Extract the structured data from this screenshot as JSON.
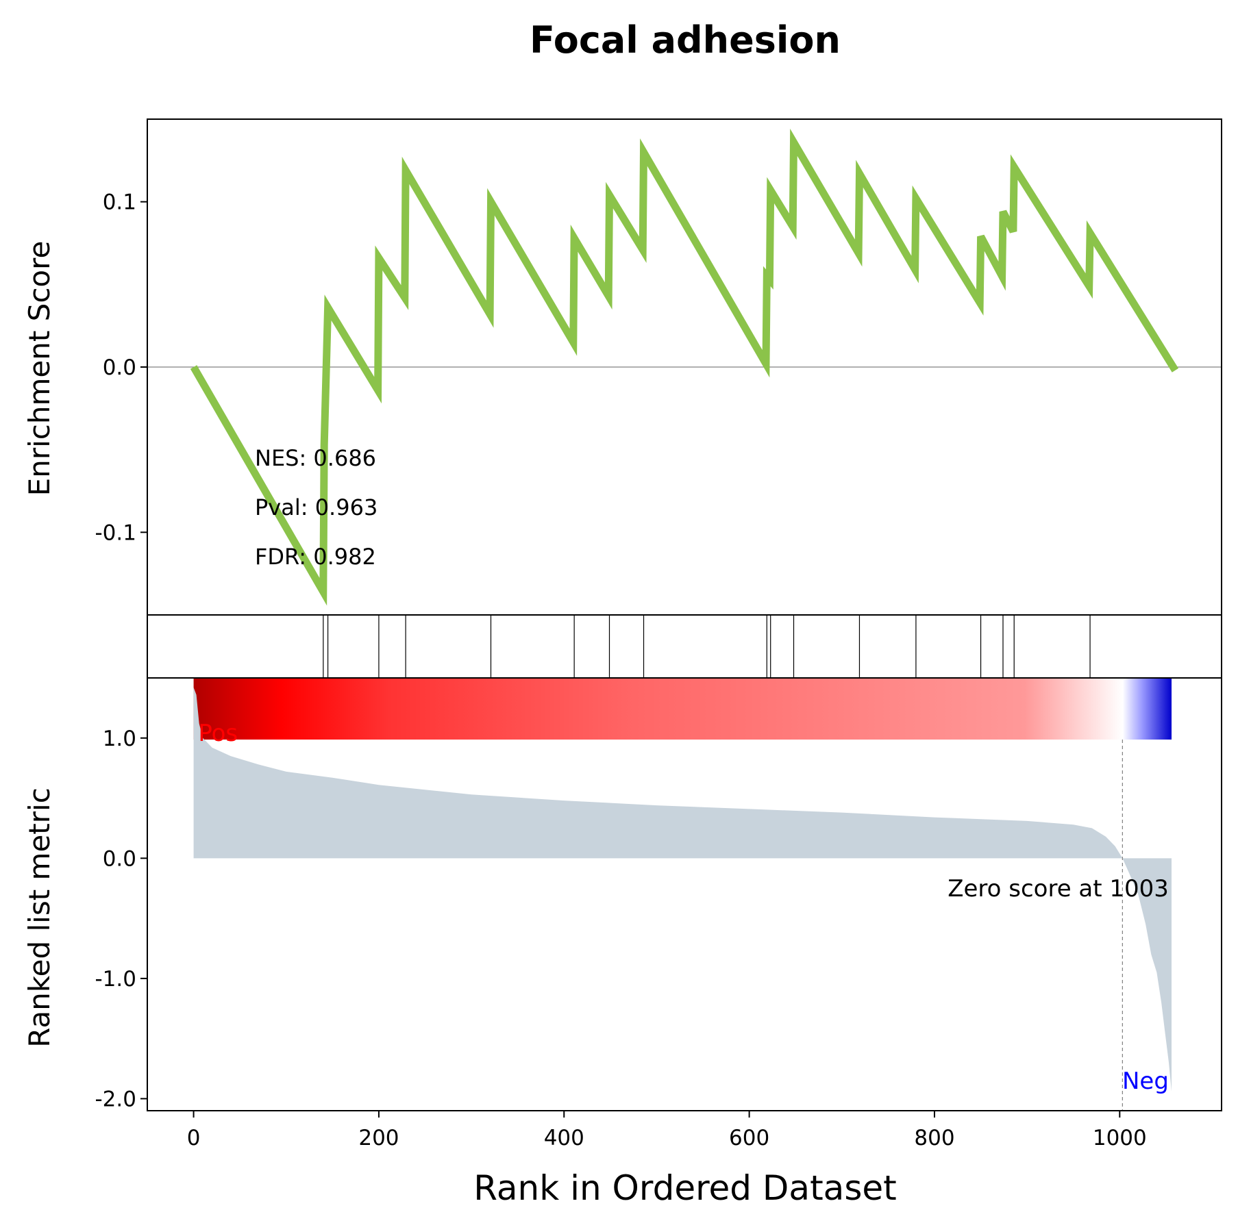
{
  "title": "Focal adhesion",
  "colors": {
    "es_line": "#8bc34a",
    "hit_line": "#000000",
    "metric_fill": "#c8d3dc",
    "pos_label": "#ff0000",
    "neg_label": "#0000ff",
    "zero_line": "#808080",
    "heat_stops": [
      "#b00000",
      "#ff0000",
      "#ff3333",
      "#ff6666",
      "#ff9999",
      "#ffffff",
      "#9999ff",
      "#0000cc"
    ]
  },
  "chart_data": [
    {
      "type": "line",
      "panel": "enrichment-score",
      "ylabel": "Enrichment Score",
      "ylim": [
        -0.15,
        0.15
      ],
      "yticks": [
        0.1,
        0.0,
        -0.1
      ],
      "ytick_labels": [
        "0.1",
        "0.0",
        "-0.1"
      ],
      "zero_line": true,
      "points": [
        [
          0,
          0.0
        ],
        [
          140,
          -0.136
        ],
        [
          141,
          -0.047
        ],
        [
          145,
          0.036
        ],
        [
          199,
          -0.014
        ],
        [
          200,
          0.066
        ],
        [
          228,
          0.042
        ],
        [
          229,
          0.119
        ],
        [
          320,
          0.032
        ],
        [
          321,
          0.1
        ],
        [
          410,
          0.015
        ],
        [
          411,
          0.078
        ],
        [
          448,
          0.043
        ],
        [
          449,
          0.104
        ],
        [
          485,
          0.071
        ],
        [
          486,
          0.13
        ],
        [
          618,
          0.002
        ],
        [
          619,
          0.055
        ],
        [
          622,
          0.053
        ],
        [
          623,
          0.107
        ],
        [
          647,
          0.085
        ],
        [
          648,
          0.136
        ],
        [
          718,
          0.069
        ],
        [
          719,
          0.117
        ],
        [
          779,
          0.059
        ],
        [
          780,
          0.102
        ],
        [
          849,
          0.039
        ],
        [
          850,
          0.079
        ],
        [
          873,
          0.055
        ],
        [
          874,
          0.094
        ],
        [
          885,
          0.082
        ],
        [
          886,
          0.121
        ],
        [
          967,
          0.049
        ],
        [
          968,
          0.081
        ],
        [
          1060,
          -0.002
        ]
      ],
      "annotations": {
        "nes": "NES: 0.686",
        "pval": "Pval: 0.963",
        "fdr": "FDR: 0.982"
      }
    },
    {
      "type": "hits",
      "panel": "gene-hits",
      "positions": [
        140,
        145,
        200,
        229,
        321,
        411,
        449,
        486,
        619,
        623,
        648,
        719,
        780,
        850,
        874,
        886,
        968
      ]
    },
    {
      "type": "area",
      "panel": "ranked-metric",
      "ylabel": "Ranked list metric",
      "xlabel": "Rank in Ordered Dataset",
      "xlim": [
        -50,
        1110
      ],
      "ylim": [
        -2.1,
        1.5
      ],
      "xticks": [
        0,
        200,
        400,
        600,
        800,
        1000
      ],
      "xtick_labels": [
        "0",
        "200",
        "400",
        "600",
        "800",
        "1000"
      ],
      "yticks": [
        1.0,
        0.0,
        -1.0,
        -2.0
      ],
      "ytick_labels": [
        "1.0",
        "0.0",
        "-1.0",
        "-2.0"
      ],
      "n": 1056,
      "points": [
        [
          0,
          1.42
        ],
        [
          3,
          1.36
        ],
        [
          6,
          1.12
        ],
        [
          10,
          1.0
        ],
        [
          20,
          0.92
        ],
        [
          40,
          0.85
        ],
        [
          70,
          0.78
        ],
        [
          100,
          0.72
        ],
        [
          150,
          0.67
        ],
        [
          200,
          0.61
        ],
        [
          300,
          0.53
        ],
        [
          400,
          0.48
        ],
        [
          500,
          0.44
        ],
        [
          600,
          0.41
        ],
        [
          700,
          0.38
        ],
        [
          800,
          0.34
        ],
        [
          900,
          0.31
        ],
        [
          950,
          0.28
        ],
        [
          970,
          0.25
        ],
        [
          985,
          0.18
        ],
        [
          995,
          0.1
        ],
        [
          1003,
          0.0
        ],
        [
          1010,
          -0.12
        ],
        [
          1020,
          -0.3
        ],
        [
          1028,
          -0.55
        ],
        [
          1034,
          -0.8
        ],
        [
          1040,
          -0.95
        ],
        [
          1045,
          -1.2
        ],
        [
          1049,
          -1.45
        ],
        [
          1053,
          -1.7
        ],
        [
          1056,
          -1.94
        ]
      ],
      "labels": {
        "pos": "Pos",
        "neg": "Neg",
        "zero_score": "Zero score at 1003"
      },
      "zero_cross": 1003
    }
  ]
}
